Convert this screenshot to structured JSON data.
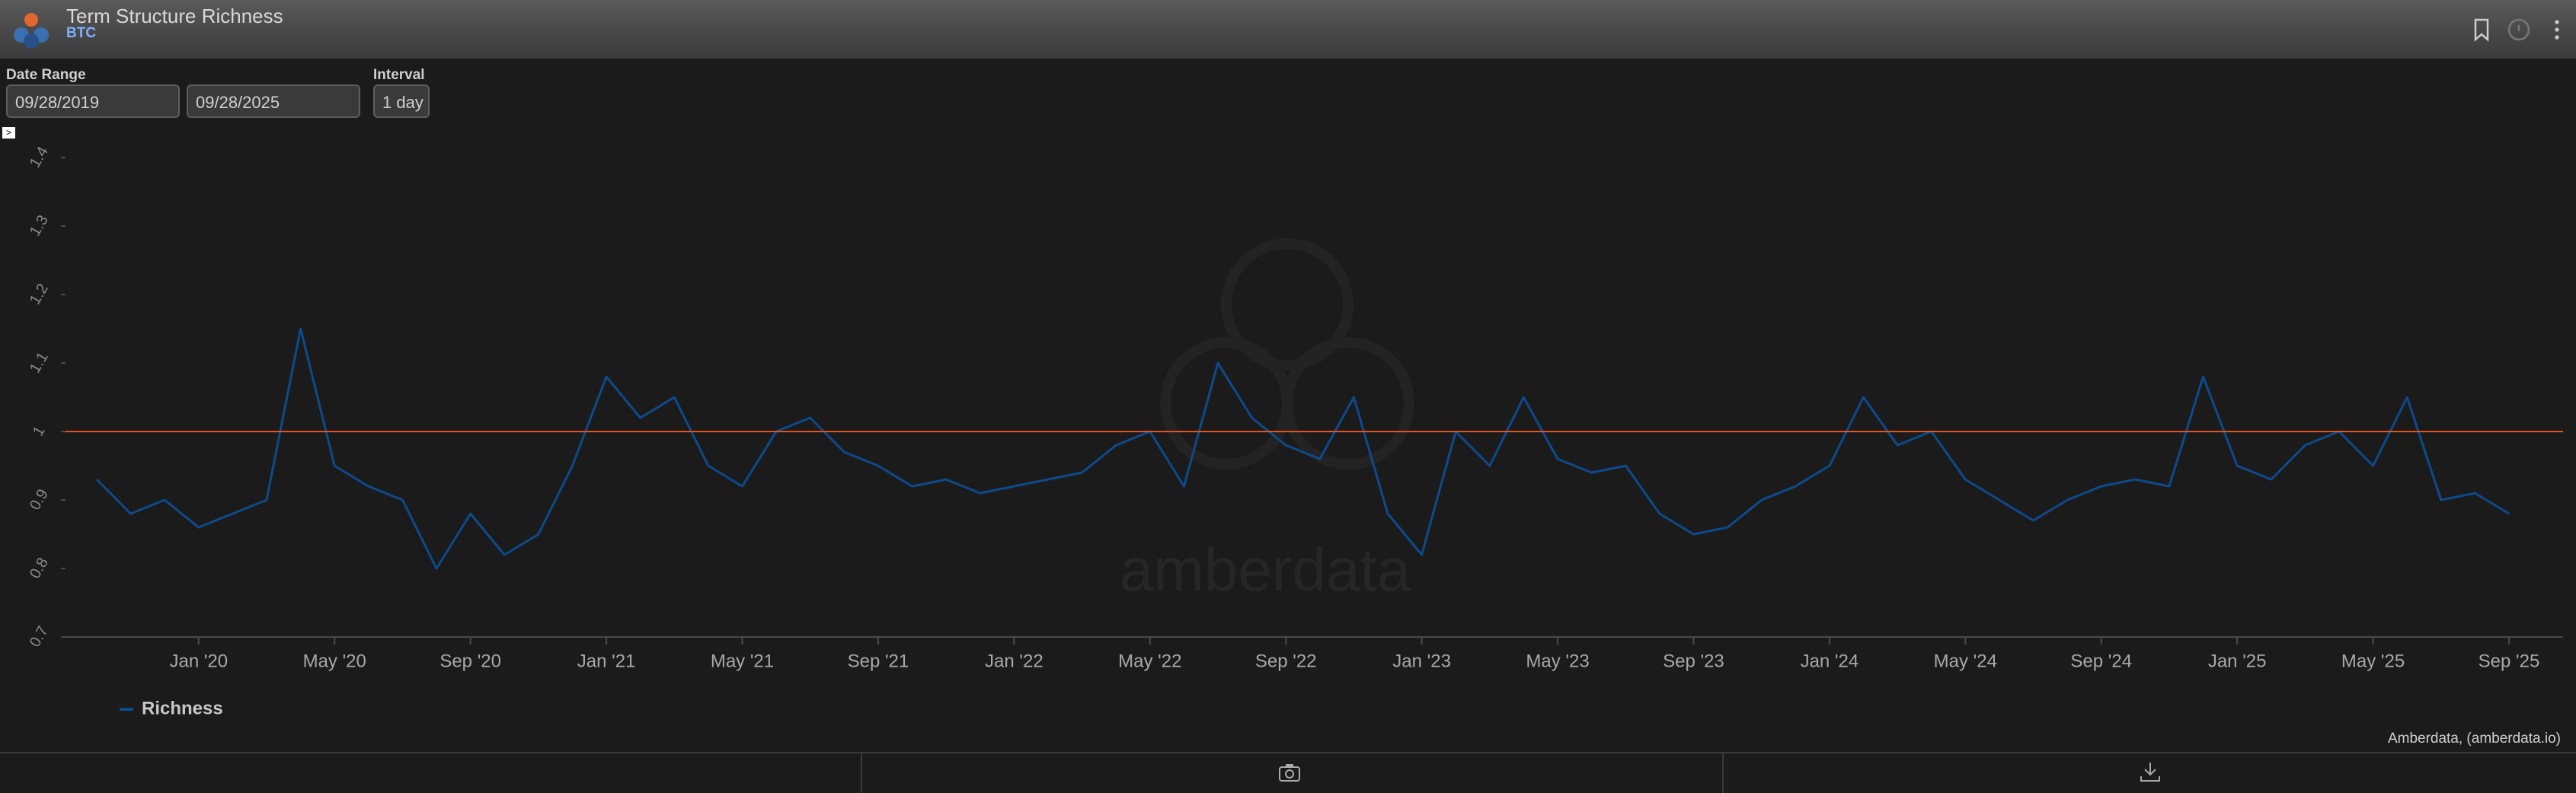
{
  "header": {
    "title": "Term Structure Richness",
    "asset": "BTC"
  },
  "controls": {
    "date_range_label": "Date Range",
    "start_date": "09/28/2019",
    "end_date": "09/28/2025",
    "interval_label": "Interval",
    "interval": "1 day"
  },
  "watermark": "amberdata",
  "credit": "Amberdata, (amberdata.io)",
  "chart_data": {
    "type": "line",
    "x": [
      "2019-10",
      "2019-11",
      "2019-12",
      "2020-01",
      "2020-02",
      "2020-03",
      "2020-04",
      "2020-05",
      "2020-06",
      "2020-07",
      "2020-08",
      "2020-09",
      "2020-10",
      "2020-11",
      "2020-12",
      "2021-01",
      "2021-02",
      "2021-03",
      "2021-04",
      "2021-05",
      "2021-06",
      "2021-07",
      "2021-08",
      "2021-09",
      "2021-10",
      "2021-11",
      "2021-12",
      "2022-01",
      "2022-02",
      "2022-03",
      "2022-04",
      "2022-05",
      "2022-06",
      "2022-07",
      "2022-08",
      "2022-09",
      "2022-10",
      "2022-11",
      "2022-12",
      "2023-01",
      "2023-02",
      "2023-03",
      "2023-04",
      "2023-05",
      "2023-06",
      "2023-07",
      "2023-08",
      "2023-09",
      "2023-10",
      "2023-11",
      "2023-12",
      "2024-01",
      "2024-02",
      "2024-03",
      "2024-04",
      "2024-05",
      "2024-06",
      "2024-07",
      "2024-08",
      "2024-09",
      "2024-10",
      "2024-11",
      "2024-12",
      "2025-01",
      "2025-02",
      "2025-03",
      "2025-04",
      "2025-05",
      "2025-06",
      "2025-07",
      "2025-08",
      "2025-09"
    ],
    "series": [
      {
        "name": "Richness",
        "color": "#0d4a8c",
        "values": [
          0.93,
          0.88,
          0.9,
          0.86,
          0.88,
          0.9,
          1.15,
          0.95,
          0.92,
          0.9,
          0.8,
          0.88,
          0.82,
          0.85,
          0.95,
          1.08,
          1.02,
          1.05,
          0.95,
          0.92,
          1.0,
          1.02,
          0.97,
          0.95,
          0.92,
          0.93,
          0.91,
          0.92,
          0.93,
          0.94,
          0.98,
          1.0,
          0.92,
          1.1,
          1.02,
          0.98,
          0.96,
          1.05,
          0.88,
          0.82,
          1.0,
          0.95,
          1.05,
          0.96,
          0.94,
          0.95,
          0.88,
          0.85,
          0.86,
          0.9,
          0.92,
          0.95,
          1.05,
          0.98,
          1.0,
          0.93,
          0.9,
          0.87,
          0.9,
          0.92,
          0.93,
          0.92,
          1.08,
          0.95,
          0.93,
          0.98,
          1.0,
          0.95,
          1.05,
          0.9,
          0.91,
          0.88
        ]
      }
    ],
    "xlim": [
      "2019-10",
      "2025-09"
    ],
    "xticks": [
      {
        "value": "2020-01",
        "label": "Jan '20"
      },
      {
        "value": "2020-05",
        "label": "May '20"
      },
      {
        "value": "2020-09",
        "label": "Sep '20"
      },
      {
        "value": "2021-01",
        "label": "Jan '21"
      },
      {
        "value": "2021-05",
        "label": "May '21"
      },
      {
        "value": "2021-09",
        "label": "Sep '21"
      },
      {
        "value": "2022-01",
        "label": "Jan '22"
      },
      {
        "value": "2022-05",
        "label": "May '22"
      },
      {
        "value": "2022-09",
        "label": "Sep '22"
      },
      {
        "value": "2023-01",
        "label": "Jan '23"
      },
      {
        "value": "2023-05",
        "label": "May '23"
      },
      {
        "value": "2023-09",
        "label": "Sep '23"
      },
      {
        "value": "2024-01",
        "label": "Jan '24"
      },
      {
        "value": "2024-05",
        "label": "May '24"
      },
      {
        "value": "2024-09",
        "label": "Sep '24"
      },
      {
        "value": "2025-01",
        "label": "Jan '25"
      },
      {
        "value": "2025-05",
        "label": "May '25"
      },
      {
        "value": "2025-09",
        "label": "Sep '25"
      }
    ],
    "ylim": [
      0.7,
      1.4
    ],
    "yticks": [
      0.7,
      0.8,
      0.9,
      1,
      1.1,
      1.2,
      1.3,
      1.4
    ],
    "reference_line": {
      "value": 1,
      "color": "#e2531f"
    },
    "grid": false
  }
}
